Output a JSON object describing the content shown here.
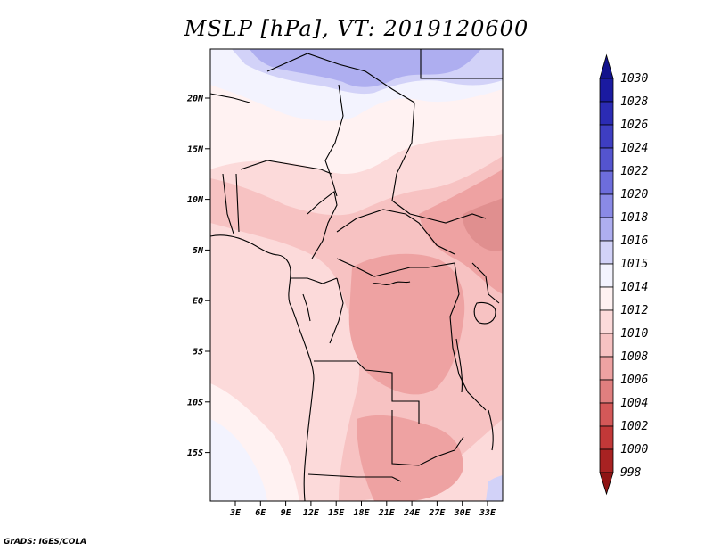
{
  "title": "MSLP [hPa], VT: 2019120600",
  "credit": "GrADS: IGES/COLA",
  "lat_ticks": [
    "20N",
    "15N",
    "10N",
    "5N",
    "EQ",
    "5S",
    "10S",
    "15S"
  ],
  "lon_ticks": [
    "3E",
    "6E",
    "9E",
    "12E",
    "15E",
    "18E",
    "21E",
    "24E",
    "27E",
    "30E",
    "33E"
  ],
  "colorbar": {
    "top_label": "1030",
    "levels": [
      {
        "label": "1028",
        "color": "#1a1aa0"
      },
      {
        "label": "1026",
        "color": "#2b2bb4"
      },
      {
        "label": "1024",
        "color": "#3e3ec2"
      },
      {
        "label": "1022",
        "color": "#5454cf"
      },
      {
        "label": "1020",
        "color": "#6d6ddc"
      },
      {
        "label": "1018",
        "color": "#8a8ae6"
      },
      {
        "label": "1016",
        "color": "#aeaef0"
      },
      {
        "label": "1015",
        "color": "#d2d2f8"
      },
      {
        "label": "1014",
        "color": "#f3f3fe"
      },
      {
        "label": "1012",
        "color": "#fff2f2"
      },
      {
        "label": "1010",
        "color": "#fcdada"
      },
      {
        "label": "1008",
        "color": "#f7c2c2"
      },
      {
        "label": "1006",
        "color": "#eea2a2"
      },
      {
        "label": "1004",
        "color": "#e07f7f"
      },
      {
        "label": "1002",
        "color": "#d45858"
      },
      {
        "label": "1000",
        "color": "#c23838"
      },
      {
        "label": "998",
        "color": "#a82222"
      }
    ],
    "over_color": "#12128c",
    "under_color": "#8f1414"
  },
  "colors": {
    "blue_high": "#aeaef0",
    "blue_mid": "#d2d2f8",
    "white_band": "#f3f3fe",
    "pink_light": "#fff2f2",
    "pink_base": "#fcdada",
    "pink_mid": "#f7c2c2",
    "pink_deep": "#eea2a2",
    "pink_dark": "#e08f8f"
  }
}
